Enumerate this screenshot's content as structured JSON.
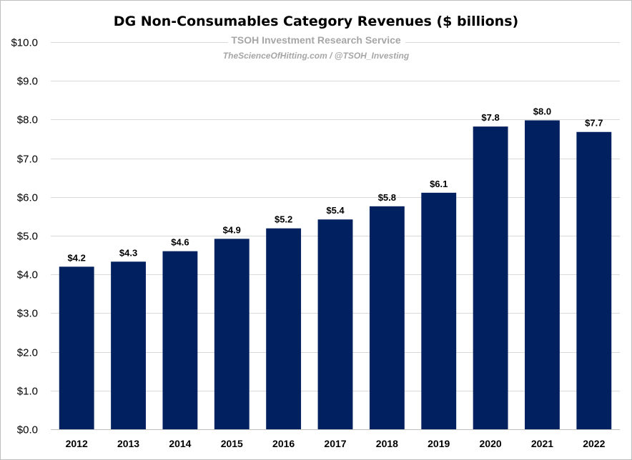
{
  "chart_data": {
    "type": "bar",
    "title": "DG Non-Consumables Category Revenues ($ billions)",
    "subtitle": "TSOH Investment Research Service",
    "source_note": "TheScienceOfHitting.com / @TSOH_Investing",
    "categories": [
      "2012",
      "2013",
      "2014",
      "2015",
      "2016",
      "2017",
      "2018",
      "2019",
      "2020",
      "2021",
      "2022"
    ],
    "values": [
      4.2,
      4.33,
      4.6,
      4.92,
      5.19,
      5.42,
      5.76,
      6.11,
      7.82,
      7.98,
      7.68
    ],
    "data_labels": [
      "$4.2",
      "$4.3",
      "$4.6",
      "$4.9",
      "$5.2",
      "$5.4",
      "$5.8",
      "$6.1",
      "$7.8",
      "$8.0",
      "$7.7"
    ],
    "ylim": [
      0,
      10
    ],
    "yticks": [
      0,
      1,
      2,
      3,
      4,
      5,
      6,
      7,
      8,
      9,
      10
    ],
    "ytick_labels": [
      "$0.0",
      "$1.0",
      "$2.0",
      "$3.0",
      "$4.0",
      "$5.0",
      "$6.0",
      "$7.0",
      "$8.0",
      "$9.0",
      "$10.0"
    ],
    "xlabel": "",
    "ylabel": "",
    "grid": true,
    "legend": "none",
    "bar_color": "#002060"
  }
}
